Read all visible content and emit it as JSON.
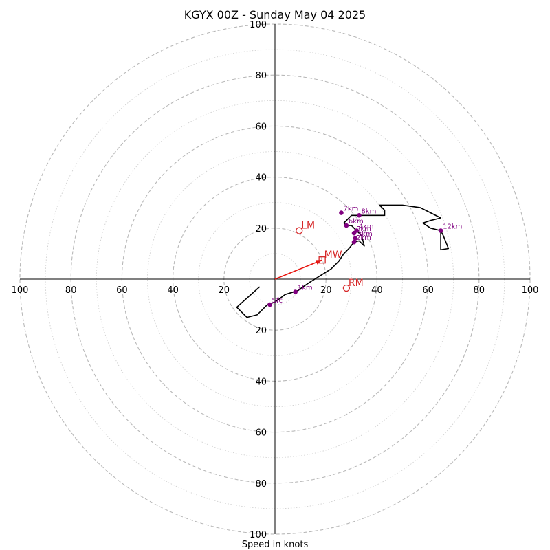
{
  "chart_data": {
    "type": "hodograph",
    "title": "KGYX 00Z - Sunday May 04 2025",
    "xlabel": "Speed in knots",
    "max_speed": 100,
    "ring_major_step": 20,
    "ring_minor_step": 10,
    "axis_ticks": [
      20,
      40,
      60,
      80,
      100
    ],
    "axis_tick_labels": {
      "left": [
        "20",
        "40",
        "60",
        "80",
        "100"
      ],
      "right": [
        "20",
        "40",
        "60",
        "80",
        "100"
      ],
      "up": [
        "20",
        "40",
        "60",
        "80",
        "100"
      ],
      "down": [
        "20",
        "40",
        "60",
        "80",
        "100"
      ]
    },
    "trace": [
      [
        -6,
        -3
      ],
      [
        -15,
        -11
      ],
      [
        -11,
        -15
      ],
      [
        -7,
        -14
      ],
      [
        -3,
        -10
      ],
      [
        0,
        -9
      ],
      [
        4,
        -6
      ],
      [
        9,
        -4.5
      ],
      [
        11,
        -3
      ],
      [
        14,
        -1
      ],
      [
        18,
        1.5
      ],
      [
        22,
        4
      ],
      [
        25,
        7
      ],
      [
        27,
        10
      ],
      [
        29,
        12
      ],
      [
        31,
        14.5
      ],
      [
        33,
        15
      ],
      [
        35,
        13
      ],
      [
        34,
        17
      ],
      [
        32,
        19
      ],
      [
        30,
        21
      ],
      [
        28,
        21
      ],
      [
        27,
        22
      ],
      [
        29,
        24
      ],
      [
        30,
        25
      ],
      [
        34,
        25
      ],
      [
        40,
        25
      ],
      [
        43,
        25
      ],
      [
        43,
        27
      ],
      [
        41,
        29
      ],
      [
        43,
        29
      ],
      [
        45,
        29
      ],
      [
        50,
        29
      ],
      [
        57,
        28
      ],
      [
        65,
        24
      ],
      [
        61,
        23
      ],
      [
        58,
        22
      ],
      [
        61,
        20
      ],
      [
        65,
        19
      ],
      [
        66,
        17
      ],
      [
        68,
        12
      ],
      [
        65,
        11.5
      ],
      [
        65,
        15
      ],
      [
        65,
        19
      ]
    ],
    "color": "#000000",
    "height_markers": [
      {
        "label": "Sfc",
        "u": -2,
        "v": -10
      },
      {
        "label": "1km",
        "u": 8,
        "v": -5
      },
      {
        "label": "2km",
        "u": 31,
        "v": 14.5
      },
      {
        "label": "3km",
        "u": 31.5,
        "v": 16
      },
      {
        "label": "4km",
        "u": 32,
        "v": 19
      },
      {
        "label": "5km",
        "u": 31,
        "v": 18
      },
      {
        "label": "6km",
        "u": 28,
        "v": 21
      },
      {
        "label": "7km",
        "u": 26,
        "v": 26
      },
      {
        "label": "8km",
        "u": 33,
        "v": 25
      },
      {
        "label": "12km",
        "u": 65,
        "v": 19
      }
    ],
    "marker_color": "#800080",
    "storm_motions": [
      {
        "label": "LM",
        "u": 9.5,
        "v": 19,
        "shape": "circle"
      },
      {
        "label": "MW",
        "u": 18.5,
        "v": 7.5,
        "shape": "square"
      },
      {
        "label": "RM",
        "u": 28,
        "v": -3.5,
        "shape": "circle"
      }
    ],
    "storm_motion_color": "#d62728",
    "mean_wind_vector": {
      "u": 18.5,
      "v": 7.5,
      "color": "#e8150f"
    }
  }
}
